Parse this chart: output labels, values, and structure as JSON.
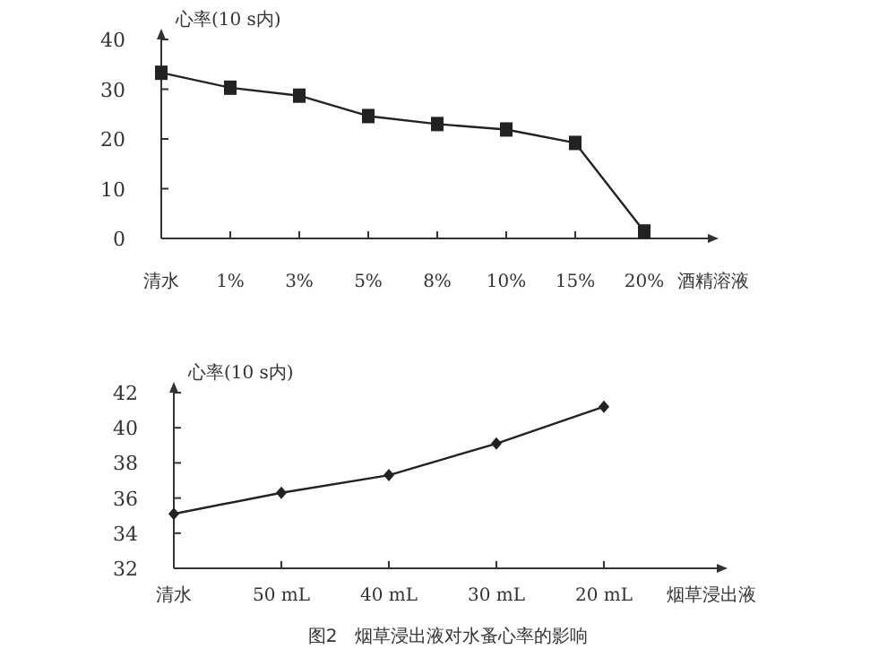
{
  "chart_data": [
    {
      "type": "line",
      "ylabel": "心率(10 s内)",
      "categories": [
        "清水",
        "1%",
        "3%",
        "5%",
        "8%",
        "10%",
        "15%",
        "20%",
        "酒精溶液"
      ],
      "values": [
        33.3,
        30.3,
        28.7,
        24.6,
        23,
        21.9,
        19.2,
        1.4,
        null
      ],
      "color": "#222222",
      "marker": "square",
      "ylim": [
        0,
        40
      ],
      "yticks": [
        0,
        10,
        20,
        30,
        40
      ]
    },
    {
      "type": "line",
      "ylabel": "心率(10 s内)",
      "categories": [
        "清水",
        "50 mL",
        "40 mL",
        "30 mL",
        "20 mL",
        "烟草浸出液"
      ],
      "values": [
        35.1,
        36.3,
        37.3,
        39.1,
        41.2,
        null
      ],
      "color": "#222222",
      "marker": "diamond",
      "ylim": [
        32,
        42
      ],
      "yticks": [
        32,
        34,
        36,
        38,
        40,
        42
      ],
      "annotations": [
        "图2　烟草浸出液对水蚤心率的影响"
      ]
    }
  ]
}
